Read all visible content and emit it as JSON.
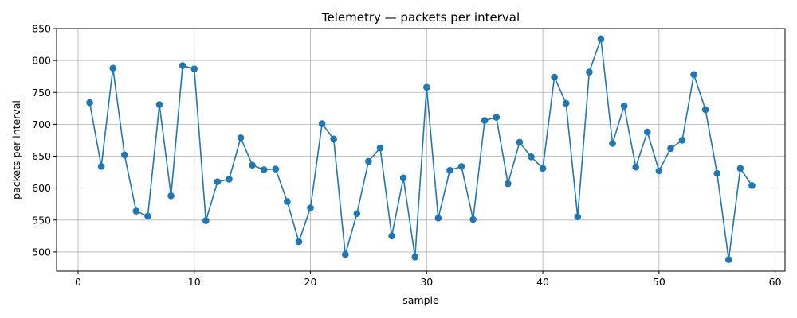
{
  "chart_data": {
    "type": "line",
    "title": "Telemetry — packets per interval",
    "xlabel": "sample",
    "ylabel": "packets per interval",
    "xlim": [
      -1.85,
      60.85
    ],
    "ylim": [
      470,
      850
    ],
    "xticks": [
      0,
      10,
      20,
      30,
      40,
      50,
      60
    ],
    "yticks": [
      500,
      550,
      600,
      650,
      700,
      750,
      800,
      850
    ],
    "grid": true,
    "line_color": "#1f77b4",
    "marker": "circle",
    "series": [
      {
        "x": [
          1,
          2,
          3,
          4,
          5,
          6,
          7,
          8,
          9,
          10,
          11,
          12,
          13,
          14,
          15,
          16,
          17,
          18,
          19,
          20,
          21,
          22,
          23,
          24,
          25,
          26,
          27,
          28,
          29,
          30,
          31,
          32,
          33,
          34,
          35,
          36,
          37,
          38,
          39,
          40,
          41,
          42,
          43,
          44,
          45,
          46,
          47,
          48,
          49,
          50,
          51,
          52,
          53,
          54,
          55,
          56,
          57,
          58
        ],
        "values": [
          734,
          634,
          788,
          652,
          564,
          556,
          731,
          588,
          792,
          787,
          549,
          610,
          614,
          679,
          636,
          629,
          630,
          579,
          516,
          569,
          701,
          677,
          496,
          560,
          642,
          663,
          525,
          616,
          492,
          758,
          553,
          628,
          634,
          551,
          706,
          711,
          607,
          672,
          649,
          631,
          774,
          733,
          555,
          782,
          834,
          670,
          729,
          633,
          688,
          627,
          662,
          675,
          778,
          723,
          623,
          488,
          631,
          604
        ]
      }
    ]
  }
}
